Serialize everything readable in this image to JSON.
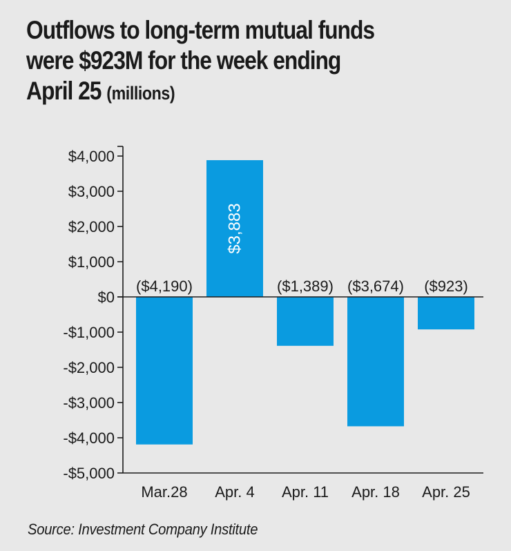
{
  "title": {
    "line1": "Outflows to long-term mutual funds",
    "line2": "were $923M for the week ending",
    "line3": "April 25",
    "unit": "(millions)"
  },
  "source": "Source: Investment Company Institute",
  "chart_data": {
    "type": "bar",
    "categories": [
      "Mar.28",
      "Apr. 4",
      "Apr. 11",
      "Apr. 18",
      "Apr. 25"
    ],
    "values": [
      -4190,
      3883,
      -1389,
      -3674,
      -923
    ],
    "data_labels": [
      "($4,190)",
      "$3,883",
      "($1,389)",
      "($3,674)",
      "($923)"
    ],
    "ylim": [
      -5000,
      4000
    ],
    "yticks": [
      4000,
      3000,
      2000,
      1000,
      0,
      -1000,
      -2000,
      -3000,
      -4000,
      -5000
    ],
    "ytick_labels": [
      "$4,000",
      "$3,000",
      "$2,000",
      "$1,000",
      "$0",
      "-$1,000",
      "-$2,000",
      "-$3,000",
      "-$4,000",
      "-$5,000"
    ],
    "bar_color": "#0a9be0",
    "label_on_bar_color": "#ffffff",
    "xlabel": "",
    "ylabel": ""
  }
}
